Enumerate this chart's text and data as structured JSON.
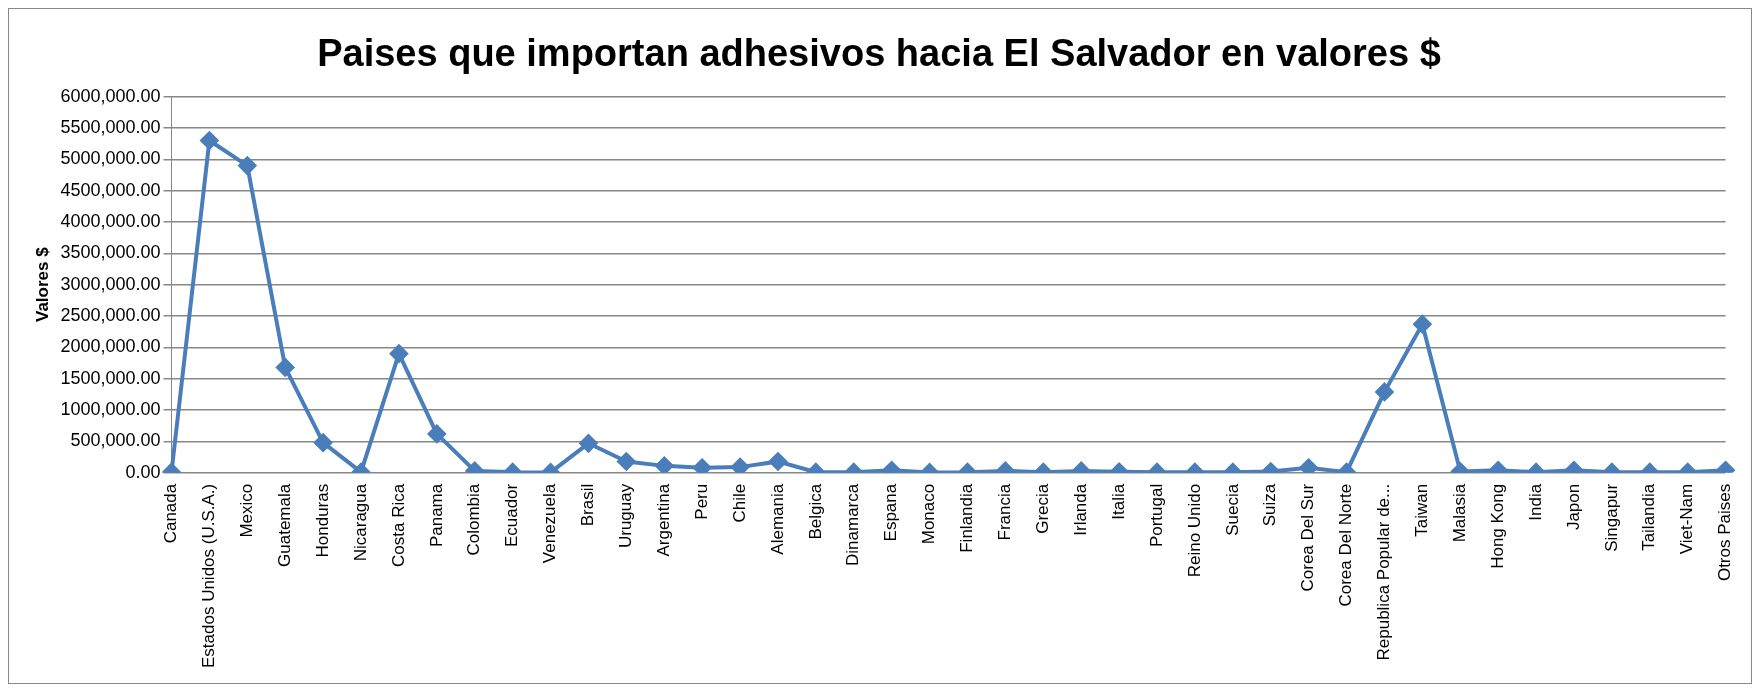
{
  "chart_data": {
    "type": "line",
    "title": "Paises que importan adhesivos hacia El Salvador en valores $",
    "ylabel": "Valores $",
    "categories": [
      "Canada",
      "Estados Unidos (U.S.A.)",
      "Mexico",
      "Guatemala",
      "Honduras",
      "Nicaragua",
      "Costa Rica",
      "Panama",
      "Colombia",
      "Ecuador",
      "Venezuela",
      "Brasil",
      "Uruguay",
      "Argentina",
      "Peru",
      "Chile",
      "Alemania",
      "Belgica",
      "Dinamarca",
      "Espana",
      "Monaco",
      "Finlandia",
      "Francia",
      "Grecia",
      "Irlanda",
      "Italia",
      "Portugal",
      "Reino Unido",
      "Suecia",
      "Suiza",
      "Corea Del Sur",
      "Corea Del Norte",
      "Republica Popular de...",
      "Taiwan",
      "Malasia",
      "Hong Kong",
      "India",
      "Japon",
      "Singapur",
      "Tailandia",
      "Viet-Nam",
      "Otros Paises"
    ],
    "series": [
      {
        "color": "#4a7ebb",
        "values": [
          10000,
          5300000,
          4900000,
          1680000,
          480000,
          10000,
          1900000,
          620000,
          30000,
          10000,
          5000,
          470000,
          180000,
          110000,
          80000,
          90000,
          180000,
          10000,
          10000,
          40000,
          5000,
          10000,
          30000,
          10000,
          30000,
          15000,
          10000,
          10000,
          10000,
          20000,
          80000,
          10000,
          1290000,
          2370000,
          20000,
          40000,
          10000,
          40000,
          10000,
          10000,
          10000,
          40000
        ]
      }
    ],
    "ylim": [
      0,
      6000000
    ],
    "yticks": [
      {
        "value": 0,
        "label": "0.00"
      },
      {
        "value": 500000,
        "label": "500,000.00"
      },
      {
        "value": 1000000,
        "label": "1000,000.00"
      },
      {
        "value": 1500000,
        "label": "1500,000.00"
      },
      {
        "value": 2000000,
        "label": "2000,000.00"
      },
      {
        "value": 2500000,
        "label": "2500,000.00"
      },
      {
        "value": 3000000,
        "label": "3000,000.00"
      },
      {
        "value": 3500000,
        "label": "3500,000.00"
      },
      {
        "value": 4000000,
        "label": "4000,000.00"
      },
      {
        "value": 4500000,
        "label": "4500,000.00"
      },
      {
        "value": 5000000,
        "label": "5000,000.00"
      },
      {
        "value": 5500000,
        "label": "5500,000.00"
      },
      {
        "value": 6000000,
        "label": "6000,000.00"
      }
    ],
    "grid": "y",
    "legend": false,
    "marker": "diamond",
    "line_style": "solid"
  }
}
